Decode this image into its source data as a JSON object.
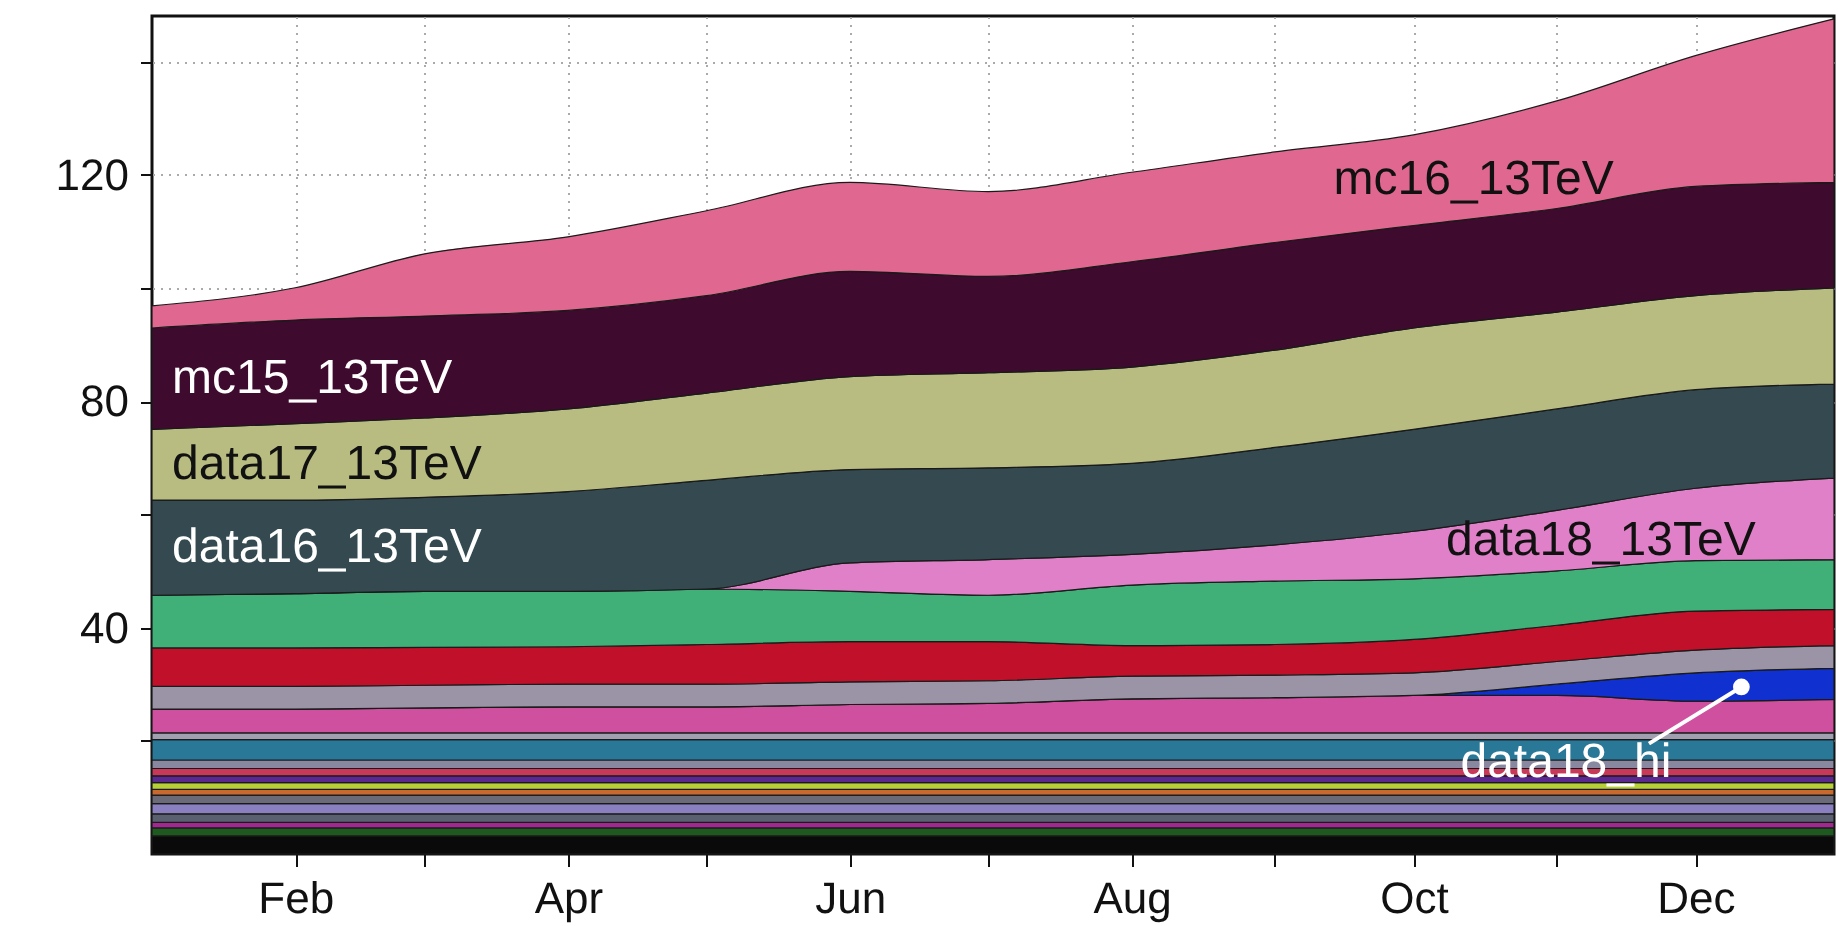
{
  "chart_data": {
    "type": "area",
    "stacked": true,
    "grid": true,
    "x": [
      "--01-01",
      "--02-01",
      "--03-01",
      "--04-01",
      "--05-01",
      "--06-01",
      "--07-01",
      "--08-01",
      "--09-01",
      "--10-01",
      "--11-01",
      "--12-01",
      "--12-31"
    ],
    "xlim": [
      "--01-01",
      "--12-31"
    ],
    "xticks": [
      {
        "value": "--02-01",
        "label": "Feb"
      },
      {
        "value": "--03-01",
        "label": null
      },
      {
        "value": "--04-01",
        "label": "Apr"
      },
      {
        "value": "--05-01",
        "label": null
      },
      {
        "value": "--06-01",
        "label": "Jun"
      },
      {
        "value": "--07-01",
        "label": null
      },
      {
        "value": "--08-01",
        "label": "Aug"
      },
      {
        "value": "--09-01",
        "label": null
      },
      {
        "value": "--10-01",
        "label": "Oct"
      },
      {
        "value": "--11-01",
        "label": null
      },
      {
        "value": "--12-01",
        "label": "Dec"
      }
    ],
    "ylim": [
      0,
      148
    ],
    "yticks": [
      {
        "value": 20,
        "label": null
      },
      40,
      {
        "value": 60,
        "label": null
      },
      80,
      {
        "value": 100,
        "label": null
      },
      120,
      {
        "value": 140,
        "label": null
      }
    ],
    "series": [
      {
        "color": "#0a0a0a",
        "values": [
          3.2,
          3.2,
          3.2,
          3.2,
          3.2,
          3.2,
          3.2,
          3.2,
          3.2,
          3.2,
          3.2,
          3.2,
          3.2
        ]
      },
      {
        "color": "#1e5a20",
        "values": [
          1.4,
          1.4,
          1.4,
          1.4,
          1.4,
          1.4,
          1.4,
          1.4,
          1.4,
          1.4,
          1.4,
          1.4,
          1.4
        ]
      },
      {
        "color": "#a02890",
        "values": [
          1,
          1,
          1,
          1,
          1,
          1,
          1,
          1,
          1,
          1,
          1,
          1,
          1
        ]
      },
      {
        "color": "#5a6070",
        "values": [
          1.5,
          1.5,
          1.5,
          1.5,
          1.5,
          1.5,
          1.5,
          1.5,
          1.5,
          1.5,
          1.5,
          1.5,
          1.5
        ]
      },
      {
        "color": "#8a80c0",
        "values": [
          1.8,
          1.8,
          1.8,
          1.8,
          1.8,
          1.8,
          1.8,
          1.8,
          1.8,
          1.8,
          1.8,
          1.8,
          1.8
        ]
      },
      {
        "color": "#6a6a78",
        "values": [
          1.5,
          1.5,
          1.5,
          1.5,
          1.5,
          1.5,
          1.5,
          1.5,
          1.5,
          1.5,
          1.5,
          1.5,
          1.5
        ]
      },
      {
        "color": "#c86a30",
        "values": [
          1,
          1,
          1,
          1,
          1,
          1,
          1,
          1,
          1,
          1,
          1,
          1,
          1
        ]
      },
      {
        "color": "#b8d038",
        "values": [
          1.2,
          1.2,
          1.2,
          1.2,
          1.2,
          1.2,
          1.2,
          1.2,
          1.2,
          1.2,
          1.2,
          1.2,
          1.2
        ]
      },
      {
        "color": "#5a2890",
        "values": [
          1.2,
          1.2,
          1.2,
          1.2,
          1.2,
          1.2,
          1.2,
          1.2,
          1.2,
          1.2,
          1.2,
          1.2,
          1.2
        ]
      },
      {
        "color": "#c83858",
        "values": [
          1.3,
          1.3,
          1.3,
          1.3,
          1.3,
          1.3,
          1.3,
          1.3,
          1.3,
          1.3,
          1.3,
          1.3,
          1.3
        ]
      },
      {
        "color": "#8888a0",
        "values": [
          1.5,
          1.5,
          1.5,
          1.5,
          1.5,
          1.5,
          1.5,
          1.5,
          1.5,
          1.5,
          1.5,
          1.5,
          1.5
        ]
      },
      {
        "color": "#2a7898",
        "values": [
          3.6,
          3.6,
          3.6,
          3.6,
          3.6,
          3.6,
          3.6,
          3.6,
          3.6,
          3.6,
          3.6,
          3.6,
          3.6
        ]
      },
      {
        "color": "#a0a0b0",
        "values": [
          1.2,
          1.2,
          1.2,
          1.2,
          1.2,
          1.2,
          1.2,
          1.2,
          1.2,
          1.2,
          1.2,
          1.2,
          1.2
        ]
      },
      {
        "color": "#d050a0",
        "values": [
          4.2,
          4.2,
          4.4,
          4.6,
          4.6,
          5,
          5.2,
          6,
          6.2,
          6.6,
          6.6,
          5.6,
          5.9
        ]
      },
      {
        "name": "data18_hi",
        "color": "#1030d0",
        "values": [
          0,
          0,
          0,
          0,
          0,
          0,
          0,
          0,
          0,
          0,
          2,
          5,
          5.5
        ]
      },
      {
        "color": "#9a94a6",
        "values": [
          4,
          4,
          4,
          4,
          4,
          4,
          4,
          4,
          4,
          4,
          4,
          4,
          4
        ]
      },
      {
        "color": "#c0102a",
        "values": [
          6.8,
          6.8,
          6.7,
          6.6,
          7,
          7.1,
          6.9,
          5.4,
          5.4,
          5.9,
          6.4,
          6.9,
          6.4
        ]
      },
      {
        "color": "#40b078",
        "values": [
          9.3,
          9.6,
          9.9,
          9.8,
          9.8,
          8.9,
          8.2,
          10.7,
          11.2,
          10.7,
          9.6,
          8.9,
          8.8
        ]
      },
      {
        "name": "data18_13TeV",
        "color": "#e080c8",
        "values": [
          0,
          0,
          0,
          0,
          0,
          5,
          6.3,
          5.4,
          6.4,
          8.4,
          10.7,
          12.8,
          14.4
        ]
      },
      {
        "name": "data16_13TeV",
        "color": "#344a50",
        "values": [
          16.8,
          16.5,
          16.6,
          17.6,
          19.2,
          16.5,
          16.2,
          16.1,
          17.2,
          18,
          17.9,
          17.4,
          16.6
        ]
      },
      {
        "name": "data17_13TeV",
        "color": "#b8bc80",
        "values": [
          12.5,
          13.5,
          14,
          14.6,
          15.4,
          16.4,
          16.8,
          17,
          17.2,
          17.9,
          17.1,
          16.6,
          17
        ]
      },
      {
        "name": "mc15_13TeV",
        "color": "#3e0a2e",
        "values": [
          17.9,
          18.3,
          18,
          17.4,
          17.2,
          18.6,
          17,
          18.6,
          19,
          18.1,
          18.3,
          19.3,
          18.6
        ]
      },
      {
        "name": "mc16_13TeV",
        "color": "#e06890",
        "values": [
          3.9,
          5.7,
          11,
          13,
          15,
          15.7,
          15,
          15.8,
          16,
          16,
          19,
          23.1,
          28.9
        ]
      }
    ]
  }
}
